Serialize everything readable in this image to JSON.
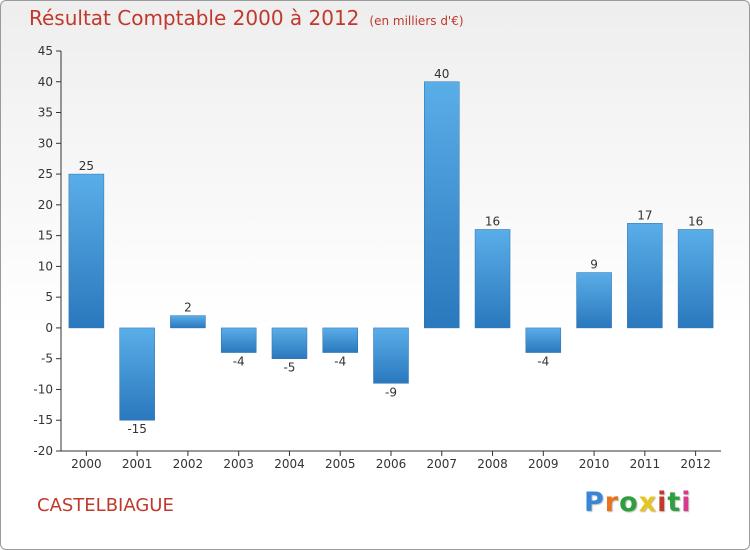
{
  "chart_data": {
    "type": "bar",
    "title": "Résultat Comptable 2000 à 2012",
    "subtitle": "(en milliers d'€)",
    "categories": [
      "2000",
      "2001",
      "2002",
      "2003",
      "2004",
      "2005",
      "2006",
      "2007",
      "2008",
      "2009",
      "2010",
      "2011",
      "2012"
    ],
    "values": [
      25,
      -15,
      2,
      -4,
      -5,
      -4,
      -9,
      40,
      16,
      -4,
      9,
      17,
      16
    ],
    "yticks": [
      45,
      40,
      35,
      30,
      25,
      20,
      15,
      10,
      5,
      0,
      -5,
      -10,
      -15,
      -20
    ],
    "ylim": [
      -20,
      45
    ],
    "grid": false,
    "legend": "none",
    "bar_color": "#3f8fd2"
  },
  "footer": {
    "commune": "CASTELBIAGUE",
    "logo_letters": [
      "P",
      "r",
      "o",
      "x",
      "i",
      "t",
      "i"
    ],
    "logo_colors": [
      "#3a86d6",
      "#e8731a",
      "#2e9e3e",
      "#e8c51a",
      "#c0392b",
      "#2e9e3e",
      "#d63a8c"
    ]
  },
  "colors": {
    "title": "#c0392b",
    "axis": "#333333"
  }
}
